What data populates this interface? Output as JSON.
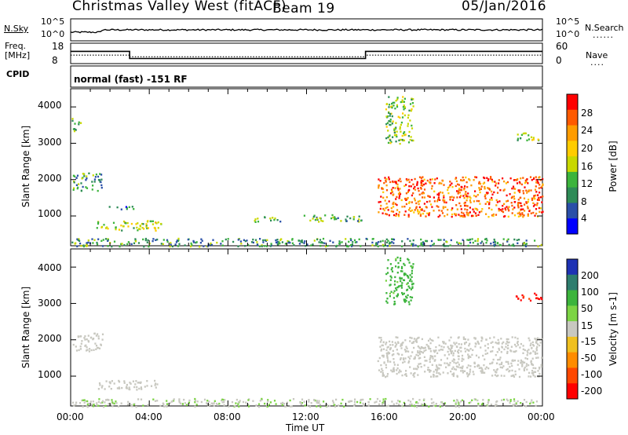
{
  "header": {
    "station": "Christmas Valley West (fitACF)",
    "beam": "Beam 19",
    "date": "05/Jan/2016"
  },
  "top_panels": {
    "nsky_label": "N.Sky",
    "nsearch_label": "N.Search",
    "nsky_ticks": [
      "10^5",
      "10^0"
    ],
    "nsearch_ticks": [
      "10^5",
      "10^0"
    ],
    "freq_label": "Freq.",
    "freq_unit": "[MHz]",
    "freq_ticks": [
      "18",
      "8"
    ],
    "nave_ticks": [
      "60",
      "0"
    ],
    "nave_label": "Nave",
    "cpid_label": "CPID",
    "cpid_text": "normal (fast) -151 RF"
  },
  "axes": {
    "ylabel": "Slant Range [km]",
    "xlabel": "Time UT",
    "y_ticks": [
      "4000",
      "3000",
      "2000",
      "1000"
    ],
    "x_ticks": [
      "00:00",
      "04:00",
      "08:00",
      "12:00",
      "16:00",
      "20:00",
      "00:00"
    ]
  },
  "power_scale": {
    "label": "Power [dB]",
    "ticks": [
      "28",
      "24",
      "20",
      "16",
      "12",
      "8",
      "4"
    ],
    "colors": [
      "#ff0000",
      "#ff5a00",
      "#ff9c00",
      "#ffcc00",
      "#c8d800",
      "#3cb43c",
      "#2e8b57",
      "#2a4fa8",
      "#0000ff"
    ]
  },
  "velocity_scale": {
    "label": "Velocity [m s-1]",
    "ticks": [
      "200",
      "100",
      "50",
      "15",
      "-15",
      "-50",
      "-100",
      "-200"
    ],
    "colors": [
      "#1e32b4",
      "#2e7d6e",
      "#3cb43c",
      "#7cd444",
      "#c8c8c0",
      "#f0c020",
      "#ff8c00",
      "#ff4800",
      "#ff0000"
    ]
  },
  "chart_data": [
    {
      "type": "line",
      "title": "N.Sky / N.Search",
      "x_range": [
        "00:00",
        "24:00"
      ],
      "series": [
        {
          "name": "N.Sky",
          "description_level": "approx 10^1.2 on log scale, flat across day"
        }
      ]
    },
    {
      "type": "line",
      "title": "Freq / Nave",
      "x": [
        0,
        3,
        3,
        15,
        15,
        24
      ],
      "series": [
        {
          "name": "Freq.",
          "values": [
            14,
            14,
            10.5,
            10.5,
            14,
            14
          ]
        },
        {
          "name": "Nave",
          "values": [
            25,
            25,
            20,
            20,
            25,
            25
          ]
        }
      ],
      "ylim": [
        8,
        18
      ]
    },
    {
      "type": "heatmap",
      "title": "Power [dB]",
      "xlabel": "Time UT",
      "ylabel": "Slant Range [km]",
      "xlim": [
        0,
        24
      ],
      "ylim": [
        180,
        4500
      ],
      "cbar_range": [
        0,
        32
      ],
      "features": [
        {
          "x0": 0,
          "x1": 24,
          "y0": 180,
          "y1": 400,
          "value": 10
        },
        {
          "x0": 1.3,
          "x1": 4.6,
          "y0": 620,
          "y1": 900,
          "value": 16
        },
        {
          "x0": 0,
          "x1": 0.5,
          "y0": 3350,
          "y1": 3700,
          "value": 12
        },
        {
          "x0": 0.1,
          "x1": 1.6,
          "y0": 1700,
          "y1": 2200,
          "value": 10
        },
        {
          "x0": 1.8,
          "x1": 3.2,
          "y0": 1200,
          "y1": 1300,
          "value": 8
        },
        {
          "x0": 9.3,
          "x1": 10.8,
          "y0": 850,
          "y1": 1000,
          "value": 12
        },
        {
          "x0": 11.8,
          "x1": 14.8,
          "y0": 850,
          "y1": 1050,
          "value": 12
        },
        {
          "x0": 15.6,
          "x1": 24,
          "y0": 1000,
          "y1": 2100,
          "value": 26
        },
        {
          "x0": 16.0,
          "x1": 17.4,
          "y0": 3000,
          "y1": 4300,
          "value": 14
        },
        {
          "x0": 22.6,
          "x1": 24,
          "y0": 3100,
          "y1": 3300,
          "value": 14
        }
      ]
    },
    {
      "type": "heatmap",
      "title": "Velocity [m s-1]",
      "xlabel": "Time UT",
      "ylabel": "Slant Range [km]",
      "xlim": [
        0,
        24
      ],
      "ylim": [
        180,
        4500
      ],
      "cbar_range": [
        -250,
        250
      ],
      "features": [
        {
          "x0": 0,
          "x1": 24,
          "y0": 180,
          "y1": 400,
          "value": 20
        },
        {
          "x0": 1.3,
          "x1": 4.6,
          "y0": 650,
          "y1": 900,
          "value": 0
        },
        {
          "x0": 0.1,
          "x1": 1.6,
          "y0": 1700,
          "y1": 2200,
          "value": 0
        },
        {
          "x0": 15.6,
          "x1": 24,
          "y0": 1000,
          "y1": 2100,
          "value": 0
        },
        {
          "x0": 16.0,
          "x1": 17.4,
          "y0": 3000,
          "y1": 4300,
          "value": 100
        },
        {
          "x0": 22.6,
          "x1": 24,
          "y0": 3100,
          "y1": 3300,
          "value": -200
        }
      ]
    }
  ]
}
